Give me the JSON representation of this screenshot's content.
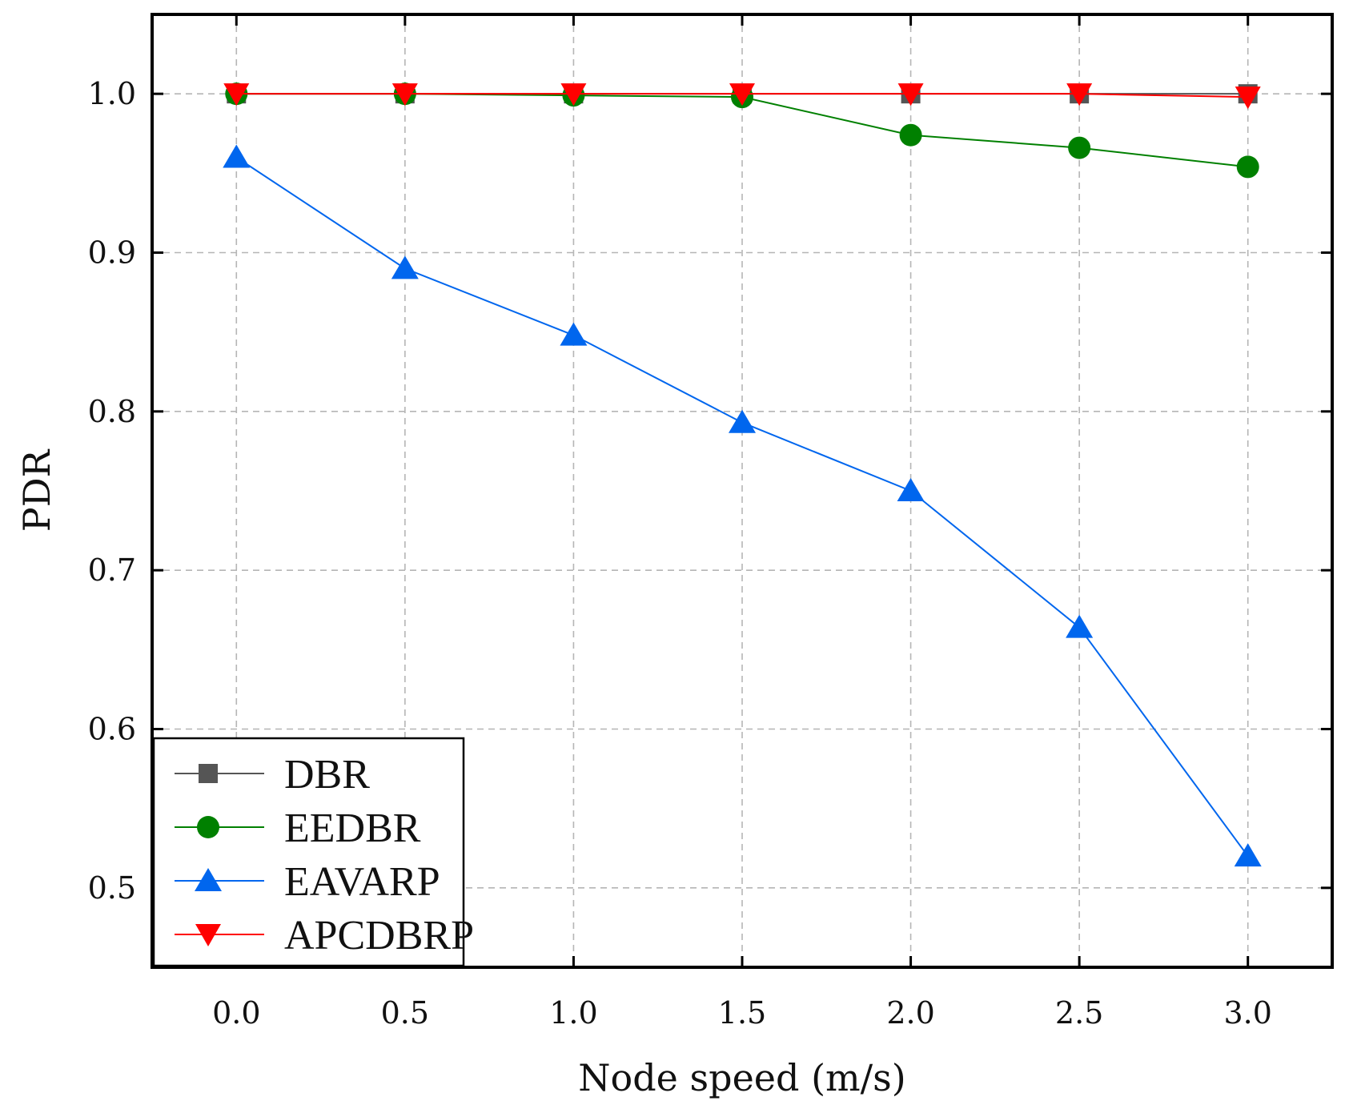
{
  "chart_data": {
    "type": "line",
    "title": "",
    "xlabel": "Node speed (m/s)",
    "ylabel": "PDR",
    "x": [
      0.0,
      0.5,
      1.0,
      1.5,
      2.0,
      2.5,
      3.0
    ],
    "xlim": [
      -0.25,
      3.25
    ],
    "ylim": [
      0.45,
      1.05
    ],
    "xticks": [
      0.0,
      0.5,
      1.0,
      1.5,
      2.0,
      2.5,
      3.0
    ],
    "xtick_labels": [
      "0.0",
      "0.5",
      "1.0",
      "1.5",
      "2.0",
      "2.5",
      "3.0"
    ],
    "yticks": [
      0.5,
      0.6,
      0.7,
      0.8,
      0.9,
      1.0
    ],
    "ytick_labels": [
      "0.5",
      "0.6",
      "0.7",
      "0.8",
      "0.9",
      "1.0"
    ],
    "grid": true,
    "legend_position": "bottom-left",
    "series": [
      {
        "name": "DBR",
        "marker": "square",
        "color": "#555555",
        "values": [
          1.0,
          1.0,
          1.0,
          1.0,
          1.0,
          1.0,
          1.0
        ]
      },
      {
        "name": "EEDBR",
        "marker": "circle",
        "color": "#008000",
        "values": [
          1.0,
          1.0,
          0.999,
          0.998,
          0.974,
          0.966,
          0.954
        ]
      },
      {
        "name": "EAVARP",
        "marker": "triangle-up",
        "color": "#0066ee",
        "values": [
          0.96,
          0.89,
          0.848,
          0.793,
          0.75,
          0.664,
          0.52
        ]
      },
      {
        "name": "APCDBRP",
        "marker": "triangle-down",
        "color": "#ff0000",
        "values": [
          1.0,
          1.0,
          1.0,
          1.0,
          1.0,
          1.0,
          0.998
        ]
      }
    ]
  }
}
